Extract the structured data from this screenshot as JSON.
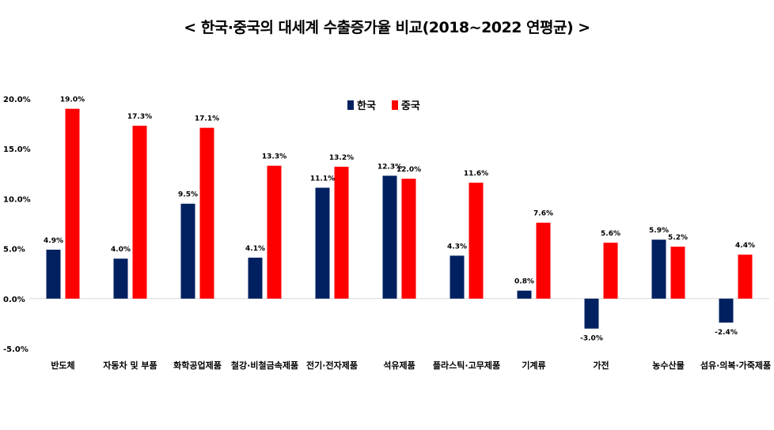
{
  "chart_data": {
    "type": "bar",
    "title": "< 한국·중국의 대세계 수출증가율 비교(2018~2022 연평균) >",
    "categories": [
      "반도체",
      "자동차 및 부품",
      "화학공업제품",
      "철강·비철금속제품",
      "전기·전자제품",
      "석유제품",
      "플라스틱·고무제품",
      "기계류",
      "가전",
      "농수산물",
      "섬유·의복·가죽제품"
    ],
    "series": [
      {
        "name": "한국",
        "color": "#002060",
        "values": [
          4.9,
          4.0,
          9.5,
          4.1,
          11.1,
          12.3,
          4.3,
          0.8,
          -3.0,
          5.9,
          -2.4
        ],
        "labels": [
          "4.9%",
          "4.0%",
          "9.5%",
          "4.1%",
          "11.1%",
          "12.3%",
          "4.3%",
          "0.8%",
          "-3.0%",
          "5.9%",
          "-2.4%"
        ]
      },
      {
        "name": "중국",
        "color": "#FF0000",
        "values": [
          19.0,
          17.3,
          17.1,
          13.3,
          13.2,
          12.0,
          11.6,
          7.6,
          5.6,
          5.2,
          4.4
        ],
        "labels": [
          "19.0%",
          "17.3%",
          "17.1%",
          "13.3%",
          "13.2%",
          "12.0%",
          "11.6%",
          "7.6%",
          "5.6%",
          "5.2%",
          "4.4%"
        ]
      }
    ],
    "ylim": [
      -5,
      20
    ],
    "yticks": [
      -5,
      0,
      5,
      10,
      15,
      20
    ],
    "ytick_labels": [
      "-5.0%",
      "0.0%",
      "5.0%",
      "10.0%",
      "15.0%",
      "20.0%"
    ],
    "legend_position": "top-center",
    "grid": false
  }
}
